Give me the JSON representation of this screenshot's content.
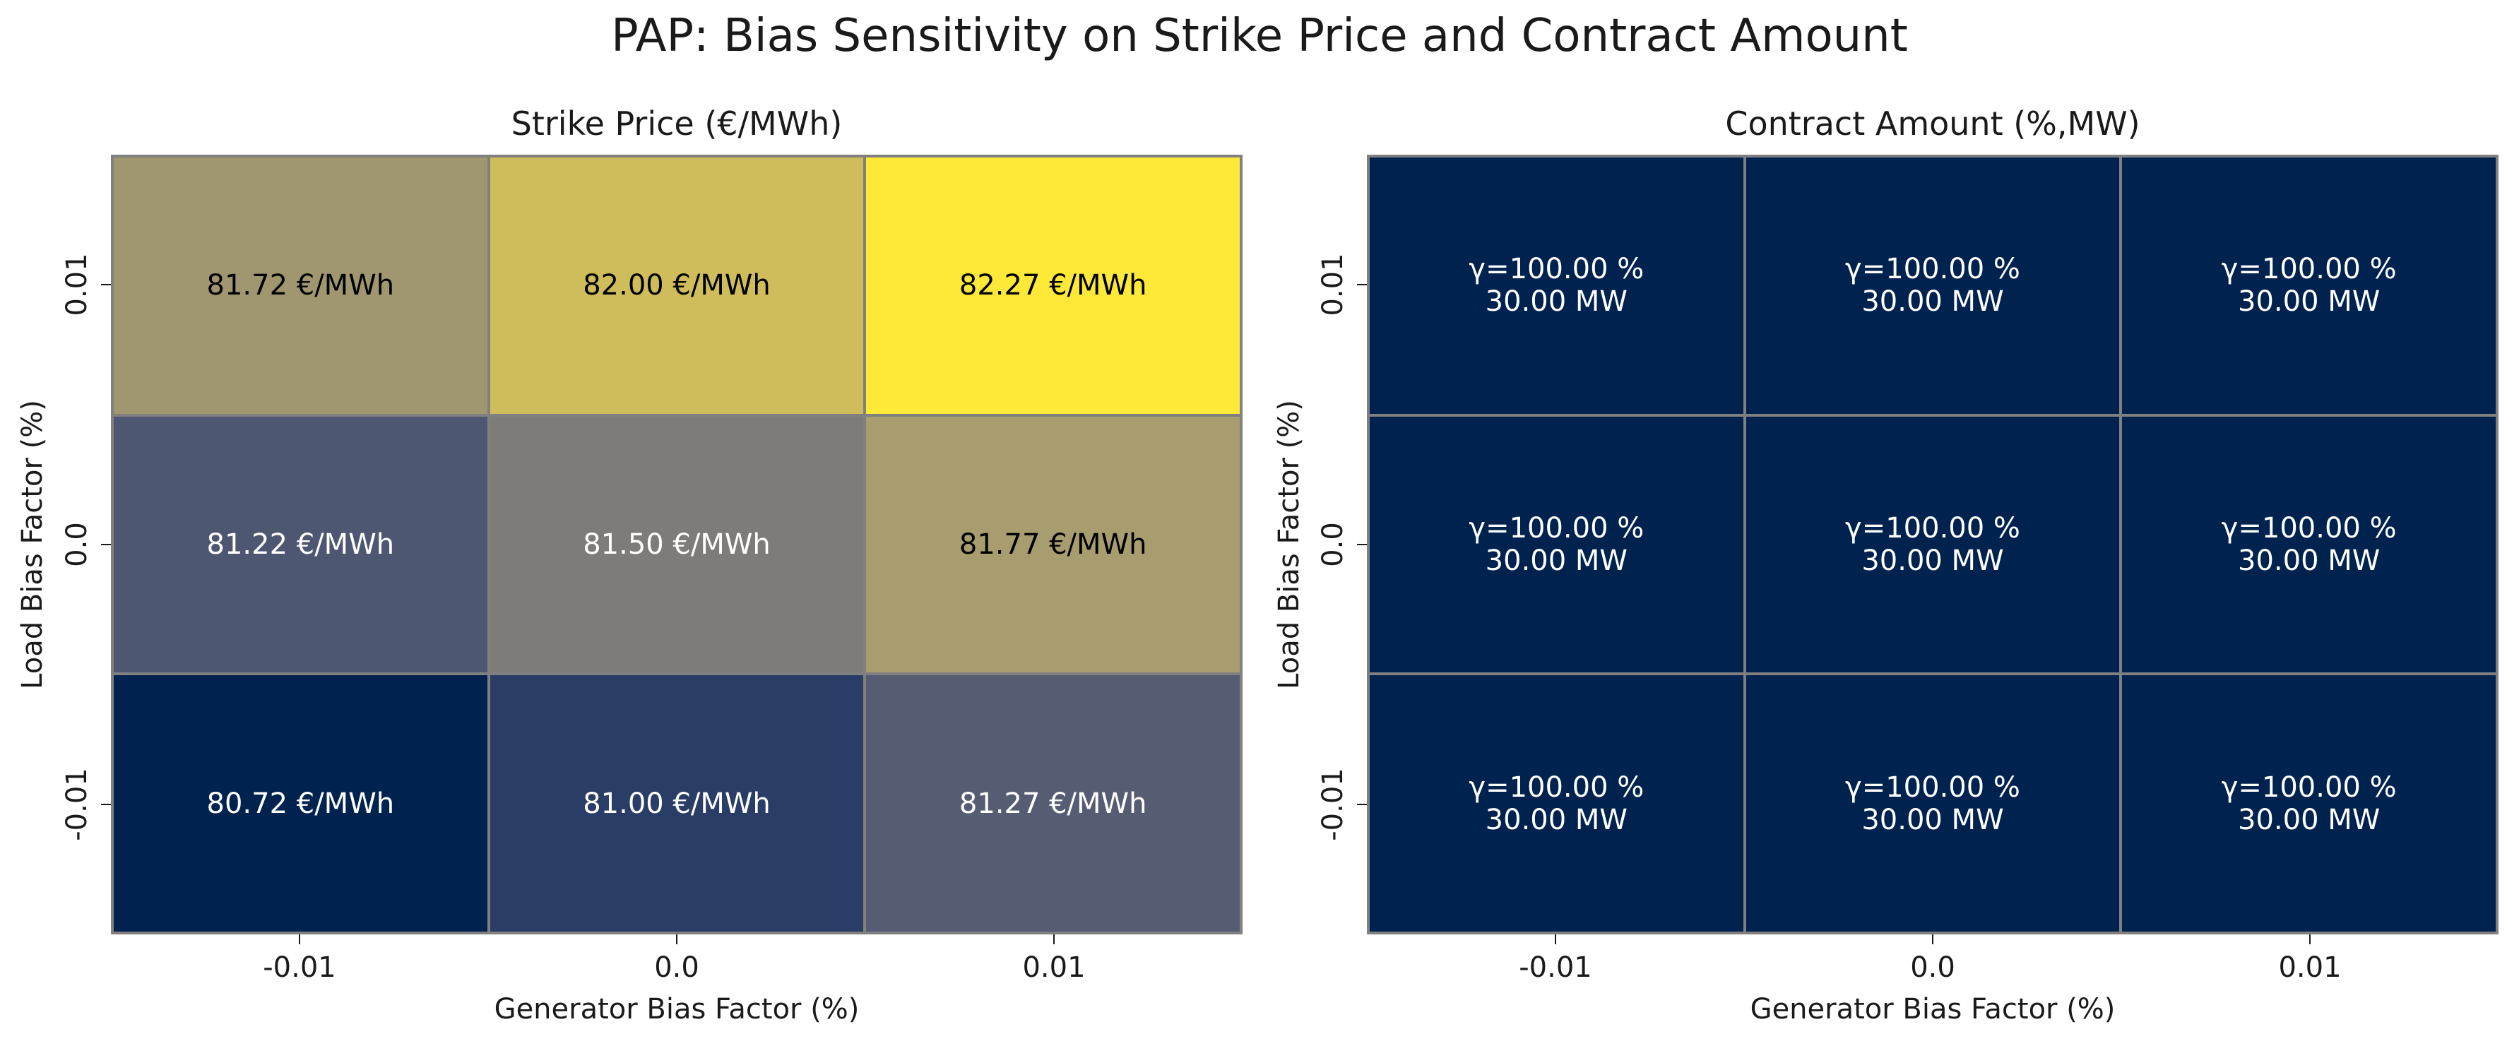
{
  "figure": {
    "suptitle": "PAP: Bias Sensitivity on Strike Price and Contract Amount"
  },
  "chart_data": [
    {
      "type": "heatmap",
      "title": "Strike Price (€/MWh)",
      "xlabel": "Generator Bias Factor (%)",
      "ylabel": "Load Bias Factor (%)",
      "x_ticks": [
        "-0.01",
        "0.0",
        "0.01"
      ],
      "y_ticks": [
        "0.01",
        "0.0",
        "-0.01"
      ],
      "values": [
        [
          81.72,
          82.0,
          82.27
        ],
        [
          81.22,
          81.5,
          81.77
        ],
        [
          80.72,
          81.0,
          81.27
        ]
      ],
      "labels": [
        [
          "81.72 €/MWh",
          "82.00 €/MWh",
          "82.27 €/MWh"
        ],
        [
          "81.22 €/MWh",
          "81.50 €/MWh",
          "81.77 €/MWh"
        ],
        [
          "80.72 €/MWh",
          "81.00 €/MWh",
          "81.27 €/MWh"
        ]
      ],
      "colormap": "cividis",
      "colorbar": false
    },
    {
      "type": "heatmap",
      "title": "Contract Amount (%,MW)",
      "xlabel": "Generator Bias Factor (%)",
      "ylabel": "Load Bias Factor (%)",
      "x_ticks": [
        "-0.01",
        "0.0",
        "0.01"
      ],
      "y_ticks": [
        "0.01",
        "0.0",
        "-0.01"
      ],
      "gamma_percent": [
        [
          100.0,
          100.0,
          100.0
        ],
        [
          100.0,
          100.0,
          100.0
        ],
        [
          100.0,
          100.0,
          100.0
        ]
      ],
      "amount_mw": [
        [
          30.0,
          30.0,
          30.0
        ],
        [
          30.0,
          30.0,
          30.0
        ],
        [
          30.0,
          30.0,
          30.0
        ]
      ],
      "labels": [
        [
          "γ=100.00 %\n30.00 MW",
          "γ=100.00 %\n30.00 MW",
          "γ=100.00 %\n30.00 MW"
        ],
        [
          "γ=100.00 %\n30.00 MW",
          "γ=100.00 %\n30.00 MW",
          "γ=100.00 %\n30.00 MW"
        ],
        [
          "γ=100.00 %\n30.00 MW",
          "γ=100.00 %\n30.00 MW",
          "γ=100.00 %\n30.00 MW"
        ]
      ],
      "colormap": "cividis",
      "colorbar": false
    }
  ]
}
